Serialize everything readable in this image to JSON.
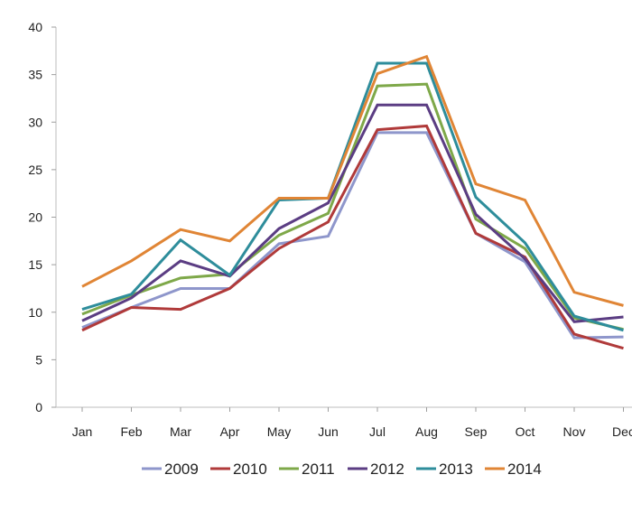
{
  "chart_data": {
    "type": "line",
    "title": "",
    "xlabel": "",
    "ylabel": "",
    "categories": [
      "Jan",
      "Feb",
      "Mar",
      "Apr",
      "May",
      "Jun",
      "Jul",
      "Aug",
      "Sep",
      "Oct",
      "Nov",
      "Dec"
    ],
    "ylim": [
      0,
      40
    ],
    "yticks": [
      0,
      5,
      10,
      15,
      20,
      25,
      30,
      35,
      40
    ],
    "grid": false,
    "legend_position": "bottom",
    "series": [
      {
        "name": "2009",
        "color": "#8e96cb",
        "values": [
          8.4,
          10.5,
          12.5,
          12.5,
          17.2,
          18.0,
          28.9,
          28.9,
          18.3,
          15.3,
          7.3,
          7.4
        ]
      },
      {
        "name": "2010",
        "color": "#b03a3a",
        "values": [
          8.1,
          10.5,
          10.3,
          12.5,
          16.7,
          19.5,
          29.2,
          29.6,
          18.3,
          15.8,
          7.7,
          6.2
        ]
      },
      {
        "name": "2011",
        "color": "#7ea849",
        "values": [
          9.8,
          11.8,
          13.6,
          14.0,
          18.1,
          20.4,
          33.8,
          34.0,
          19.8,
          16.7,
          9.4,
          8.2
        ]
      },
      {
        "name": "2012",
        "color": "#5b3d83",
        "values": [
          9.1,
          11.5,
          15.4,
          13.8,
          18.8,
          21.5,
          31.8,
          31.8,
          20.3,
          15.6,
          9.0,
          9.5
        ]
      },
      {
        "name": "2013",
        "color": "#2e8d9b",
        "values": [
          10.3,
          11.9,
          17.6,
          13.9,
          21.8,
          22.0,
          36.2,
          36.2,
          22.1,
          17.3,
          9.6,
          8.1
        ]
      },
      {
        "name": "2014",
        "color": "#e08535",
        "values": [
          12.7,
          15.4,
          18.7,
          17.5,
          22.0,
          22.0,
          35.1,
          36.9,
          23.5,
          21.8,
          12.1,
          10.7
        ]
      }
    ]
  }
}
